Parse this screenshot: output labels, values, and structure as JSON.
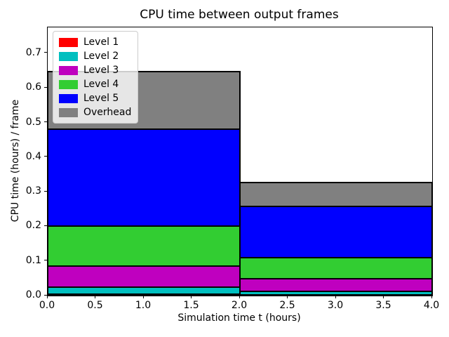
{
  "figure": {
    "title": "CPU time between output frames",
    "xlabel": "Simulation time t (hours)",
    "ylabel": "CPU time (hours) / frame"
  },
  "chart_data": {
    "type": "bar",
    "stacked": true,
    "orientation": "vertical",
    "title": "CPU time between output frames",
    "xlabel": "Simulation time t (hours)",
    "ylabel": "CPU time (hours) / frame",
    "xlim": [
      0.0,
      4.0
    ],
    "ylim": [
      0.0,
      0.775
    ],
    "grid": false,
    "legend_position": "upper left",
    "bar_edge_color": "#000000",
    "bar_x_edges": [
      0.0,
      2.0,
      4.0
    ],
    "xticks": [
      0.0,
      0.5,
      1.0,
      1.5,
      2.0,
      2.5,
      3.0,
      3.5,
      4.0
    ],
    "xtick_labels": [
      "0.0",
      "0.5",
      "1.0",
      "1.5",
      "2.0",
      "2.5",
      "3.0",
      "3.5",
      "4.0"
    ],
    "yticks": [
      0.0,
      0.1,
      0.2,
      0.3,
      0.4,
      0.5,
      0.6,
      0.7
    ],
    "ytick_labels": [
      "0.0",
      "0.1",
      "0.2",
      "0.3",
      "0.4",
      "0.5",
      "0.6",
      "0.7"
    ],
    "series": [
      {
        "name": "Level 1",
        "color": "#ff0000",
        "values": [
          0.005,
          0.002
        ]
      },
      {
        "name": "Level 2",
        "color": "#00bfbf",
        "values": [
          0.02,
          0.011
        ]
      },
      {
        "name": "Level 3",
        "color": "#bf00bf",
        "values": [
          0.06,
          0.036
        ]
      },
      {
        "name": "Level 4",
        "color": "#32cd32",
        "values": [
          0.115,
          0.061
        ]
      },
      {
        "name": "Level 5",
        "color": "#0000ff",
        "values": [
          0.28,
          0.147
        ]
      },
      {
        "name": "Overhead",
        "color": "#808080",
        "values": [
          0.168,
          0.069
        ]
      }
    ],
    "stack_totals": [
      0.648,
      0.326
    ]
  }
}
